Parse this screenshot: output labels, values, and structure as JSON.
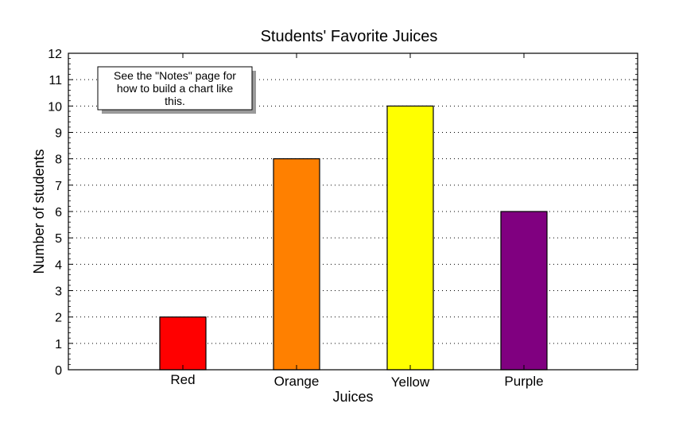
{
  "chart_data": {
    "type": "bar",
    "title": "Students' Favorite Juices",
    "xlabel": "Juices",
    "ylabel": "Number of students",
    "categories": [
      "Red",
      "Orange",
      "Yellow",
      "Purple"
    ],
    "values": [
      2,
      8,
      10,
      6
    ],
    "colors": [
      "#ff0000",
      "#ff8000",
      "#ffff00",
      "#800080"
    ],
    "ylim": [
      0,
      12
    ],
    "yticks": [
      0,
      1,
      2,
      3,
      4,
      5,
      6,
      7,
      8,
      9,
      10,
      11,
      12
    ],
    "grid": "horizontal dotted",
    "annotation": {
      "lines": [
        "See the \"Notes\" page for",
        "how to build a chart like",
        "this."
      ],
      "placement": "top-left"
    }
  }
}
